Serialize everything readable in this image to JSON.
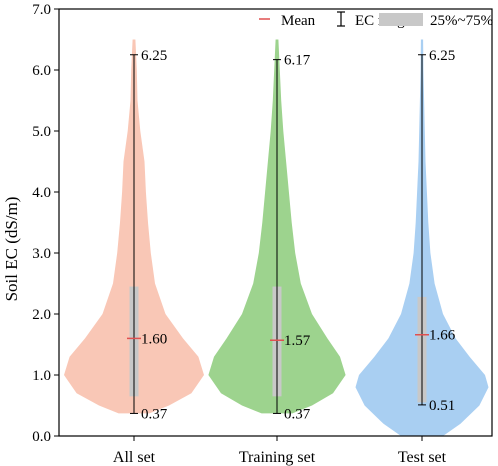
{
  "chart_data": {
    "type": "violin",
    "ylabel": "Soil EC (dS/m)",
    "ylim": [
      0,
      7
    ],
    "yticks": [
      "0.0",
      "1.0",
      "2.0",
      "3.0",
      "4.0",
      "5.0",
      "6.0",
      "7.0"
    ],
    "grid": false,
    "legend_placement": "top",
    "legend": {
      "mean": "Mean",
      "range": "EC range",
      "iqr": "25%~75%"
    },
    "colors": {
      "mean": "#e05050",
      "range": "#000000",
      "iqr": "#c8c8c8"
    },
    "series": [
      {
        "category": "All set",
        "color": "#f9c7b6",
        "max": 6.25,
        "max_label": "6.25",
        "mean": 1.6,
        "mean_label": "1.60",
        "min": 0.37,
        "min_label": "0.37",
        "q1": 0.65,
        "q3": 2.45,
        "violin_top": 6.5,
        "violin_bottom": 0.37,
        "density": [
          [
            0.37,
            0.22
          ],
          [
            0.5,
            0.5
          ],
          [
            0.7,
            0.82
          ],
          [
            1.0,
            1.0
          ],
          [
            1.3,
            0.92
          ],
          [
            1.6,
            0.7
          ],
          [
            2.0,
            0.45
          ],
          [
            2.5,
            0.3
          ],
          [
            3.0,
            0.24
          ],
          [
            3.5,
            0.2
          ],
          [
            4.0,
            0.17
          ],
          [
            4.5,
            0.15
          ],
          [
            5.0,
            0.09
          ],
          [
            5.5,
            0.05
          ],
          [
            6.0,
            0.04
          ],
          [
            6.5,
            0.02
          ]
        ]
      },
      {
        "category": "Training set",
        "color": "#9dd38e",
        "max": 6.17,
        "max_label": "6.17",
        "mean": 1.57,
        "mean_label": "1.57",
        "min": 0.37,
        "min_label": "0.37",
        "q1": 0.65,
        "q3": 2.45,
        "violin_top": 6.5,
        "violin_bottom": 0.37,
        "density": [
          [
            0.37,
            0.22
          ],
          [
            0.5,
            0.5
          ],
          [
            0.7,
            0.8
          ],
          [
            1.0,
            0.98
          ],
          [
            1.3,
            0.9
          ],
          [
            1.6,
            0.72
          ],
          [
            2.0,
            0.5
          ],
          [
            2.5,
            0.34
          ],
          [
            3.0,
            0.26
          ],
          [
            3.5,
            0.21
          ],
          [
            4.0,
            0.17
          ],
          [
            4.5,
            0.13
          ],
          [
            5.0,
            0.09
          ],
          [
            5.5,
            0.06
          ],
          [
            6.0,
            0.04
          ],
          [
            6.5,
            0.02
          ]
        ]
      },
      {
        "category": "Test set",
        "color": "#a9cff2",
        "max": 6.25,
        "max_label": "6.25",
        "mean": 1.66,
        "mean_label": "1.66",
        "min": 0.51,
        "min_label": "0.51",
        "q1": 0.55,
        "q3": 2.28,
        "violin_top": 6.5,
        "violin_bottom": 0.0,
        "density": [
          [
            0.0,
            0.3
          ],
          [
            0.2,
            0.55
          ],
          [
            0.5,
            0.82
          ],
          [
            0.8,
            0.95
          ],
          [
            1.0,
            0.9
          ],
          [
            1.3,
            0.68
          ],
          [
            1.6,
            0.48
          ],
          [
            2.0,
            0.3
          ],
          [
            2.5,
            0.18
          ],
          [
            3.0,
            0.12
          ],
          [
            3.5,
            0.09
          ],
          [
            4.0,
            0.07
          ],
          [
            4.5,
            0.05
          ],
          [
            5.0,
            0.04
          ],
          [
            5.5,
            0.03
          ],
          [
            6.0,
            0.02
          ],
          [
            6.5,
            0.015
          ]
        ]
      }
    ]
  }
}
